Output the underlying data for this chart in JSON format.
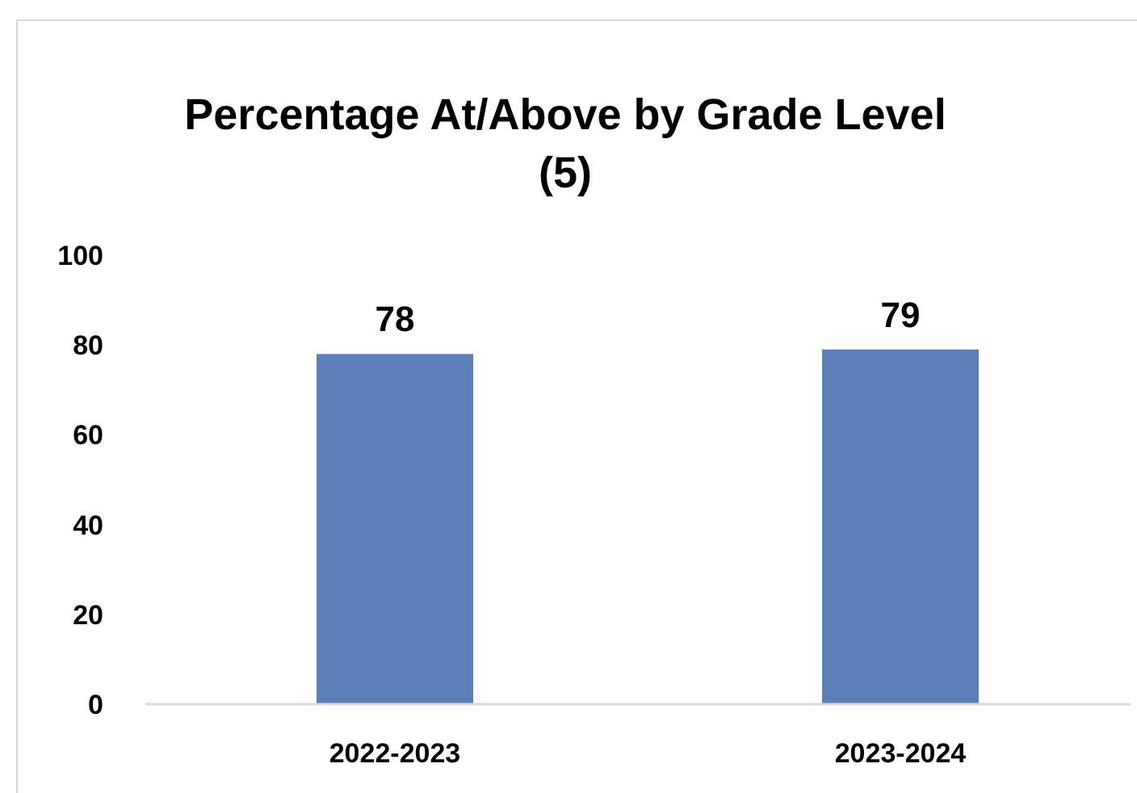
{
  "chart_data": {
    "type": "bar",
    "title": "Percentage At/Above by Grade Level (5)",
    "categories": [
      "2022-2023",
      "2023-2024"
    ],
    "values": [
      78,
      79
    ],
    "color": "#5b80b9",
    "ylim": [
      0,
      100
    ],
    "yticks": [
      0,
      20,
      40,
      60,
      80,
      100
    ],
    "grid": false,
    "data_labels": true
  }
}
